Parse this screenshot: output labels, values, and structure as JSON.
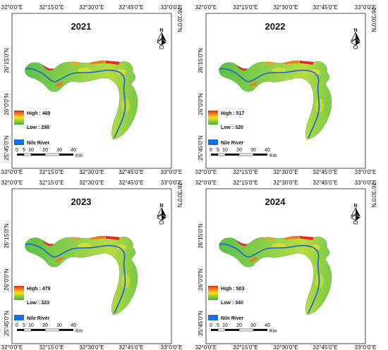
{
  "axes": {
    "lon_ticks": [
      "32°0'0\"E",
      "32°15'0\"E",
      "32°30'0\"E",
      "32°45'0\"E",
      "33°0'0\"E"
    ],
    "lat_ticks_left": [
      "26°15'0\"N",
      "26°0'0\"N",
      "25°45'0\"N"
    ],
    "lat_ticks_right": [
      "26°30'0\"N"
    ]
  },
  "north_arrow": {
    "label": "N"
  },
  "legend": {
    "river_label": "Nile River",
    "colors": {
      "high": "#e8281e",
      "mid": "#f5e020",
      "low": "#3cb43c",
      "river": "#1f5fd1",
      "river_swatch": "#1a6fe0"
    }
  },
  "scalebar": {
    "ticks": [
      "0",
      "5",
      "10",
      "20",
      "30",
      "40"
    ],
    "unit": "Km"
  },
  "panels": [
    {
      "year": "2021",
      "high": "High : 469",
      "low": "Low : 298"
    },
    {
      "year": "2022",
      "high": "High : 517",
      "low": "Low : 320"
    },
    {
      "year": "2023",
      "high": "High : 479",
      "low": "Low : 323"
    },
    {
      "year": "2024",
      "high": "High : 503",
      "low": "Low : 340"
    }
  ]
}
